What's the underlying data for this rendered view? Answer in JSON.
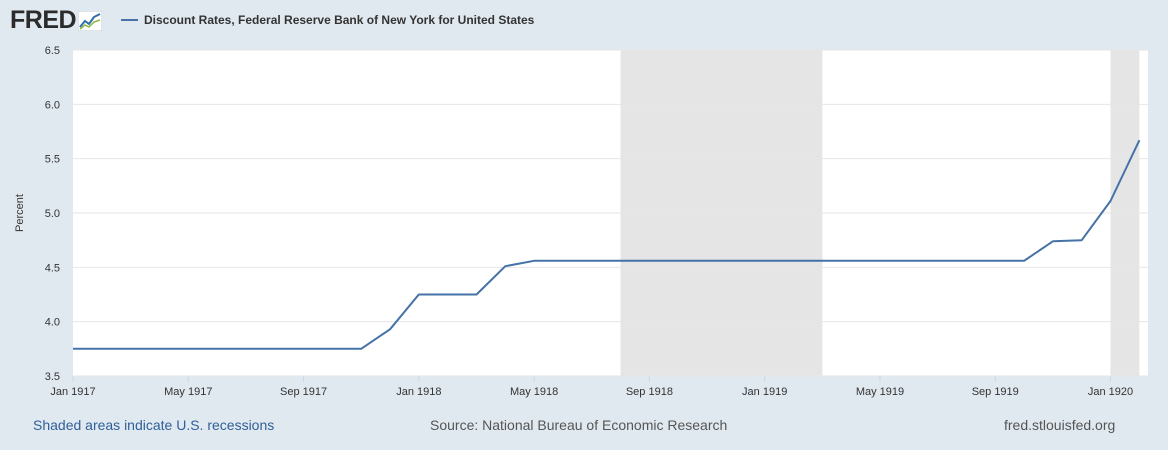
{
  "header": {
    "logo_text": "FRED",
    "logo_icon": "fred-chart-icon",
    "legend_label": "Discount Rates, Federal Reserve Bank of New York for United States"
  },
  "footer": {
    "recessions_note": "Shaded areas indicate U.S. recessions",
    "source": "Source: National Bureau of Economic Research",
    "site": "fred.stlouisfed.org"
  },
  "colors": {
    "page_background": "#e1e9f0",
    "plot_background": "#ffffff",
    "series": "#4572a7",
    "recession_shade": "#e5e5e5",
    "grid": "#e6e6e6"
  },
  "chart_data": {
    "type": "line",
    "ylabel": "Percent",
    "ylim": [
      3.5,
      6.5
    ],
    "yticks": [
      "3.5",
      "4.0",
      "4.5",
      "5.0",
      "5.5",
      "6.0",
      "6.5"
    ],
    "xlim": [
      "1917-01",
      "1920-01"
    ],
    "xticks": [
      "Jan 1917",
      "May 1917",
      "Sep 1917",
      "Jan 1918",
      "May 1918",
      "Sep 1918",
      "Jan 1919",
      "May 1919",
      "Sep 1919",
      "Jan 1920"
    ],
    "grid": true,
    "recessions": [
      [
        "1918-08",
        "1919-03"
      ],
      [
        "1920-01",
        "1920-02"
      ]
    ],
    "series": [
      {
        "name": "Discount Rates, Federal Reserve Bank of New York for United States",
        "x": [
          "1917-01",
          "1917-02",
          "1917-03",
          "1917-04",
          "1917-05",
          "1917-06",
          "1917-07",
          "1917-08",
          "1917-09",
          "1917-10",
          "1917-11",
          "1917-12",
          "1918-01",
          "1918-02",
          "1918-03",
          "1918-04",
          "1918-05",
          "1918-06",
          "1918-07",
          "1918-08",
          "1918-09",
          "1918-10",
          "1918-11",
          "1918-12",
          "1919-01",
          "1919-02",
          "1919-03",
          "1919-04",
          "1919-05",
          "1919-06",
          "1919-07",
          "1919-08",
          "1919-09",
          "1919-10",
          "1919-11",
          "1919-12",
          "1920-01",
          "1920-02"
        ],
        "values": [
          3.75,
          3.75,
          3.75,
          3.75,
          3.75,
          3.75,
          3.75,
          3.75,
          3.75,
          3.75,
          3.75,
          3.93,
          4.25,
          4.25,
          4.25,
          4.51,
          4.56,
          4.56,
          4.56,
          4.56,
          4.56,
          4.56,
          4.56,
          4.56,
          4.56,
          4.56,
          4.56,
          4.56,
          4.56,
          4.56,
          4.56,
          4.56,
          4.56,
          4.56,
          4.74,
          4.75,
          5.11,
          5.67
        ]
      }
    ]
  }
}
